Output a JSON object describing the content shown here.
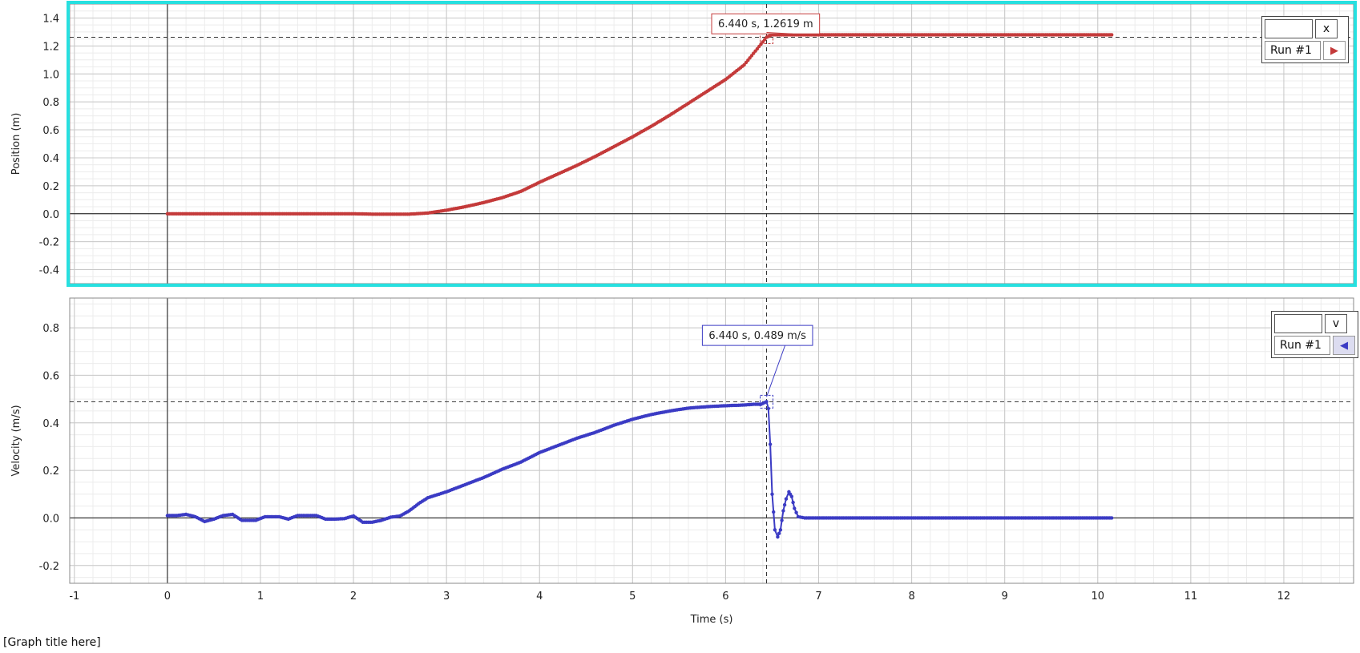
{
  "graph_title": "[Graph title here]",
  "chart_data": [
    {
      "type": "line",
      "ylabel": "Position (m)",
      "xlabel": "",
      "xlim": [
        -1.05,
        12.75
      ],
      "ylim": [
        -0.5,
        1.5
      ],
      "x_ticks": [
        -1,
        0,
        1,
        2,
        3,
        4,
        5,
        6,
        7,
        8,
        9,
        10,
        11,
        12
      ],
      "y_ticks": [
        -0.4,
        -0.2,
        0.0,
        0.2,
        0.4,
        0.6,
        0.8,
        1.0,
        1.2,
        1.4
      ],
      "grid": true,
      "color": "#c43a3a",
      "selected": true,
      "highlight_color": "#27e0e0",
      "series": [
        {
          "legend_run": "Run #1",
          "points": [
            [
              0,
              0
            ],
            [
              1,
              0
            ],
            [
              2,
              0
            ],
            [
              2.2,
              -0.003
            ],
            [
              2.6,
              -0.003
            ],
            [
              2.8,
              0.005
            ],
            [
              3.0,
              0.025
            ],
            [
              3.2,
              0.05
            ],
            [
              3.4,
              0.08
            ],
            [
              3.6,
              0.115
            ],
            [
              3.8,
              0.16
            ],
            [
              4.0,
              0.225
            ],
            [
              4.2,
              0.285
            ],
            [
              4.4,
              0.345
            ],
            [
              4.6,
              0.41
            ],
            [
              4.8,
              0.48
            ],
            [
              5.0,
              0.55
            ],
            [
              5.2,
              0.625
            ],
            [
              5.4,
              0.705
            ],
            [
              5.6,
              0.79
            ],
            [
              5.8,
              0.875
            ],
            [
              6.0,
              0.96
            ],
            [
              6.2,
              1.065
            ],
            [
              6.44,
              1.2619
            ],
            [
              6.5,
              1.28
            ],
            [
              6.6,
              1.28
            ],
            [
              7,
              1.28
            ],
            [
              8,
              1.28
            ],
            [
              9,
              1.28
            ],
            [
              10,
              1.28
            ],
            [
              10.15,
              1.28
            ]
          ]
        }
      ],
      "annotation": {
        "x": 6.44,
        "y": 1.2619,
        "label": "6.440 s, 1.2619 m",
        "dx": 5.85,
        "dy": 1.43
      },
      "legend": {
        "symbol": "x",
        "run": "Run #1",
        "button": "▶",
        "position": "top-right"
      }
    },
    {
      "type": "line",
      "ylabel": "Velocity (m/s)",
      "xlabel": "Time (s)",
      "xlim": [
        -1.05,
        12.75
      ],
      "ylim": [
        -0.275,
        0.925
      ],
      "x_ticks": [
        -1,
        0,
        1,
        2,
        3,
        4,
        5,
        6,
        7,
        8,
        9,
        10,
        11,
        12
      ],
      "y_ticks": [
        -0.2,
        0.0,
        0.2,
        0.4,
        0.6,
        0.8
      ],
      "grid": true,
      "color": "#3b3bc4",
      "selected": false,
      "series": [
        {
          "legend_run": "Run #1",
          "points": [
            [
              0,
              0.01
            ],
            [
              0.1,
              0.01
            ],
            [
              0.2,
              0.015
            ],
            [
              0.3,
              0.005
            ],
            [
              0.4,
              -0.015
            ],
            [
              0.5,
              -0.005
            ],
            [
              0.6,
              0.01
            ],
            [
              0.7,
              0.015
            ],
            [
              0.8,
              -0.01
            ],
            [
              0.95,
              -0.01
            ],
            [
              1.05,
              0.005
            ],
            [
              1.2,
              0.005
            ],
            [
              1.3,
              -0.005
            ],
            [
              1.4,
              0.01
            ],
            [
              1.6,
              0.01
            ],
            [
              1.7,
              -0.005
            ],
            [
              1.8,
              -0.005
            ],
            [
              1.9,
              -0.003
            ],
            [
              2.0,
              0.008
            ],
            [
              2.1,
              -0.018
            ],
            [
              2.2,
              -0.018
            ],
            [
              2.3,
              -0.01
            ],
            [
              2.4,
              0.003
            ],
            [
              2.5,
              0.008
            ],
            [
              2.6,
              0.03
            ],
            [
              2.7,
              0.06
            ],
            [
              2.8,
              0.085
            ],
            [
              3.0,
              0.11
            ],
            [
              3.2,
              0.14
            ],
            [
              3.4,
              0.17
            ],
            [
              3.6,
              0.205
            ],
            [
              3.8,
              0.235
            ],
            [
              4.0,
              0.275
            ],
            [
              4.2,
              0.305
            ],
            [
              4.4,
              0.335
            ],
            [
              4.6,
              0.36
            ],
            [
              4.8,
              0.39
            ],
            [
              5.0,
              0.415
            ],
            [
              5.2,
              0.435
            ],
            [
              5.4,
              0.45
            ],
            [
              5.6,
              0.462
            ],
            [
              5.8,
              0.468
            ],
            [
              6.0,
              0.472
            ],
            [
              6.2,
              0.475
            ],
            [
              6.3,
              0.478
            ],
            [
              6.38,
              0.478
            ],
            [
              6.44,
              0.489
            ],
            [
              6.46,
              0.46
            ],
            [
              6.48,
              0.31
            ],
            [
              6.5,
              0.1
            ],
            [
              6.53,
              -0.05
            ],
            [
              6.56,
              -0.08
            ],
            [
              6.59,
              -0.05
            ],
            [
              6.62,
              0.03
            ],
            [
              6.65,
              0.08
            ],
            [
              6.68,
              0.11
            ],
            [
              6.71,
              0.09
            ],
            [
              6.74,
              0.04
            ],
            [
              6.78,
              0.005
            ],
            [
              6.85,
              0
            ],
            [
              7.5,
              0
            ],
            [
              8.5,
              0
            ],
            [
              9.5,
              0
            ],
            [
              10.15,
              0
            ]
          ]
        }
      ],
      "annotation": {
        "x": 6.44,
        "y": 0.489,
        "label": "6.440 s, 0.489 m/s",
        "dx": 5.75,
        "dy": 0.81
      },
      "legend": {
        "symbol": "v",
        "run": "Run #1",
        "button": "◀",
        "position": "top-right"
      }
    }
  ]
}
